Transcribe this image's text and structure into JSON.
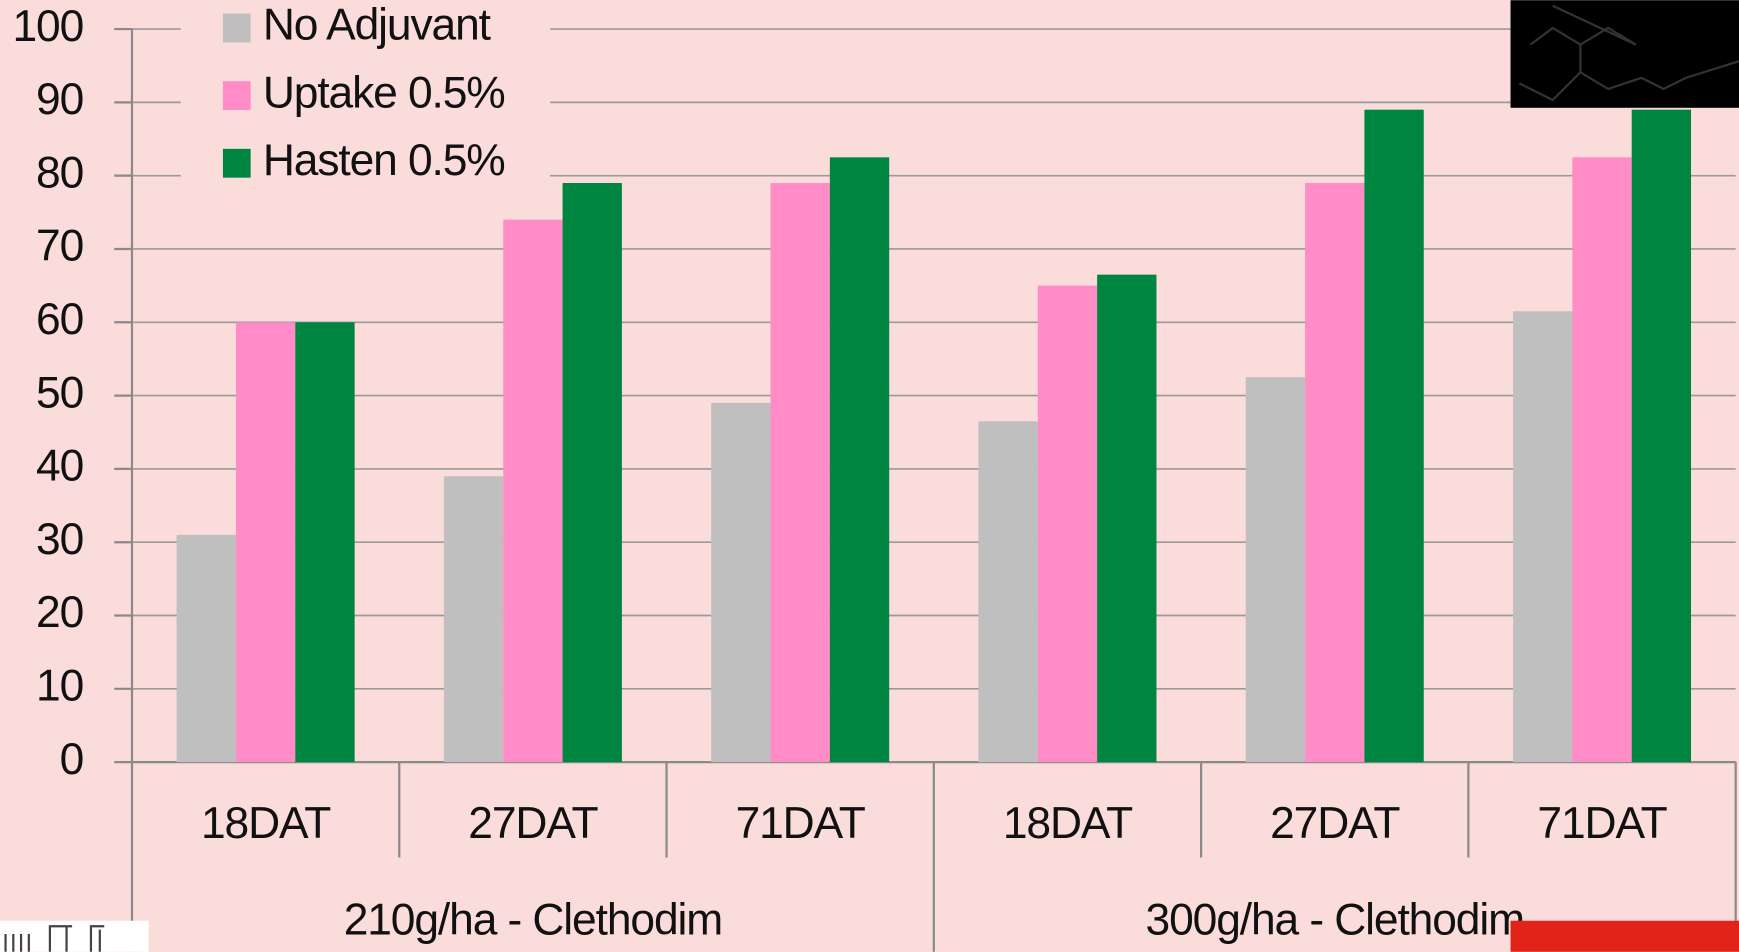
{
  "chart_data": {
    "type": "bar",
    "groups": [
      {
        "name": "210g/ha - Clethodim",
        "categories": [
          "18DAT",
          "27DAT",
          "71DAT"
        ]
      },
      {
        "name": "300g/ha - Clethodim",
        "categories": [
          "18DAT",
          "27DAT",
          "71DAT"
        ]
      }
    ],
    "series": [
      {
        "name": "No Adjuvant",
        "color": "#c0bfbf",
        "values": [
          31,
          39,
          49,
          46.5,
          52.5,
          61.5
        ]
      },
      {
        "name": "Uptake 0.5%",
        "color": "#ff8cc6",
        "values": [
          60,
          74,
          79,
          65,
          79,
          82.5
        ]
      },
      {
        "name": "Hasten 0.5%",
        "color": "#008540",
        "values": [
          60,
          79,
          82.5,
          66.5,
          89,
          89
        ]
      }
    ],
    "ylim": [
      0,
      100
    ],
    "yticks": [
      0,
      10,
      20,
      30,
      40,
      50,
      60,
      70,
      80,
      90,
      100
    ],
    "grid": true,
    "legend": "top-left"
  }
}
